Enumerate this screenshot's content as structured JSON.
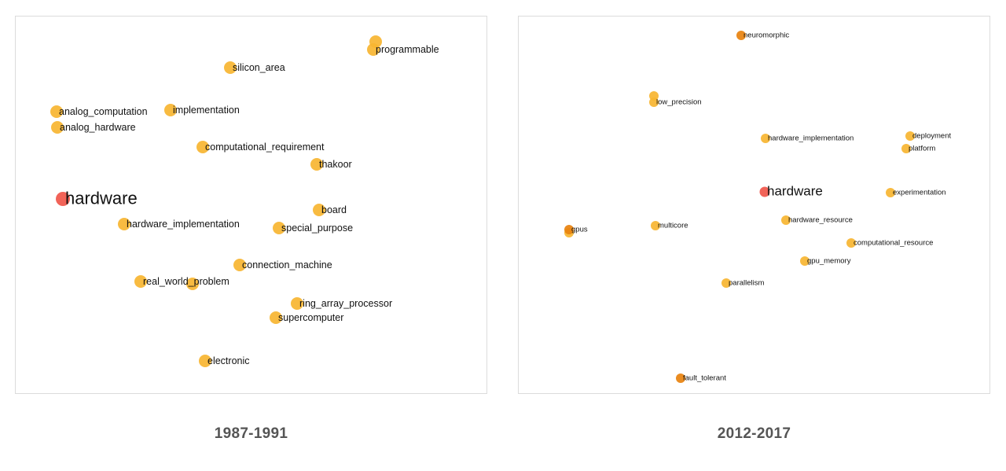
{
  "colors": {
    "focus": "#f0564a",
    "neighbor": "#f7b531",
    "neighbor_dark": "#e8820e"
  },
  "panels": [
    {
      "caption": "1987-1991",
      "focus": "hardware",
      "words": [
        {
          "label": "programmable",
          "shade": "neighbor"
        },
        {
          "label": "silicon_area",
          "shade": "neighbor"
        },
        {
          "label": "analog_computation",
          "shade": "neighbor"
        },
        {
          "label": "analog_hardware",
          "shade": "neighbor"
        },
        {
          "label": "implementation",
          "shade": "neighbor"
        },
        {
          "label": "computational_requirement",
          "shade": "neighbor"
        },
        {
          "label": "thakoor",
          "shade": "neighbor"
        },
        {
          "label": "board",
          "shade": "neighbor"
        },
        {
          "label": "hardware_implementation",
          "shade": "neighbor"
        },
        {
          "label": "special_purpose",
          "shade": "neighbor"
        },
        {
          "label": "connection_machine",
          "shade": "neighbor"
        },
        {
          "label": "real_world_problem",
          "shade": "neighbor"
        },
        {
          "label": "ring_array_processor",
          "shade": "neighbor"
        },
        {
          "label": "supercomputer",
          "shade": "neighbor"
        },
        {
          "label": "electronic",
          "shade": "neighbor"
        }
      ]
    },
    {
      "caption": "2012-2017",
      "focus": "hardware",
      "words": [
        {
          "label": "neuromorphic",
          "shade": "neighbor_dark"
        },
        {
          "label": "low_precision",
          "shade": "neighbor"
        },
        {
          "label": "hardware_implementation",
          "shade": "neighbor"
        },
        {
          "label": "deployment",
          "shade": "neighbor"
        },
        {
          "label": "platform",
          "shade": "neighbor"
        },
        {
          "label": "experimentation",
          "shade": "neighbor"
        },
        {
          "label": "hardware_resource",
          "shade": "neighbor"
        },
        {
          "label": "gpus",
          "shade": "neighbor_dark"
        },
        {
          "label": "multicore",
          "shade": "neighbor"
        },
        {
          "label": "computational_resource",
          "shade": "neighbor"
        },
        {
          "label": "gpu_memory",
          "shade": "neighbor"
        },
        {
          "label": "parallelism",
          "shade": "neighbor"
        },
        {
          "label": "fault_tolerant",
          "shade": "neighbor_dark"
        }
      ]
    }
  ]
}
